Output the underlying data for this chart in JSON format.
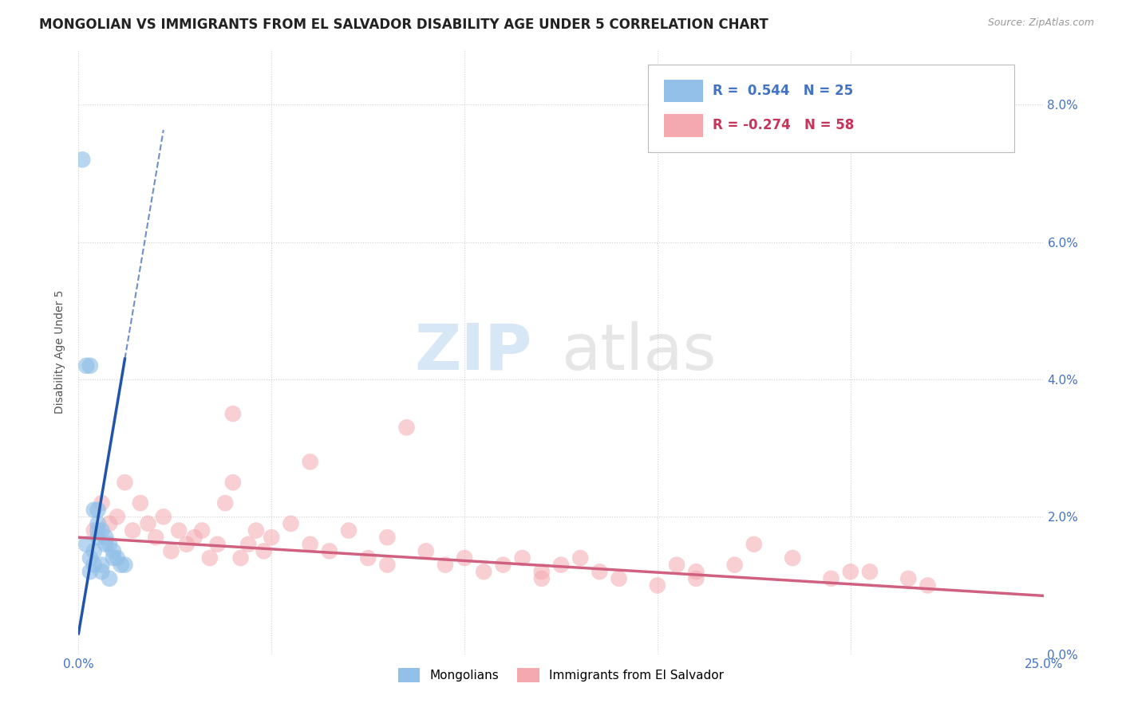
{
  "title": "MONGOLIAN VS IMMIGRANTS FROM EL SALVADOR DISABILITY AGE UNDER 5 CORRELATION CHART",
  "source": "Source: ZipAtlas.com",
  "ylabel": "Disability Age Under 5",
  "xlim": [
    0.0,
    0.25
  ],
  "ylim": [
    0.0,
    0.088
  ],
  "x_ticks": [
    0.0,
    0.05,
    0.1,
    0.15,
    0.2,
    0.25
  ],
  "y_ticks": [
    0.0,
    0.02,
    0.04,
    0.06,
    0.08
  ],
  "y_tick_labels": [
    "0.0%",
    "2.0%",
    "4.0%",
    "6.0%",
    "8.0%"
  ],
  "legend_r1": "R =  0.544",
  "legend_n1": "N = 25",
  "legend_r2": "R = -0.274",
  "legend_n2": "N = 58",
  "color_mongolian": "#92c0e8",
  "color_salvador": "#f4a8b0",
  "color_mongolian_line": "#2255aa",
  "color_salvador_line": "#d06080",
  "background_color": "#ffffff",
  "grid_color": "#cccccc",
  "mongolian_x": [
    0.001,
    0.002,
    0.002,
    0.003,
    0.003,
    0.003,
    0.004,
    0.004,
    0.004,
    0.005,
    0.005,
    0.005,
    0.005,
    0.006,
    0.006,
    0.006,
    0.007,
    0.007,
    0.008,
    0.008,
    0.009,
    0.009,
    0.01,
    0.011,
    0.012
  ],
  "mongolian_y": [
    0.072,
    0.016,
    0.042,
    0.014,
    0.012,
    0.042,
    0.013,
    0.015,
    0.021,
    0.017,
    0.018,
    0.019,
    0.021,
    0.012,
    0.013,
    0.018,
    0.016,
    0.017,
    0.011,
    0.016,
    0.014,
    0.015,
    0.014,
    0.013,
    0.013
  ],
  "salvador_x": [
    0.004,
    0.006,
    0.008,
    0.01,
    0.012,
    0.014,
    0.016,
    0.018,
    0.02,
    0.022,
    0.024,
    0.026,
    0.028,
    0.03,
    0.032,
    0.034,
    0.036,
    0.038,
    0.04,
    0.042,
    0.044,
    0.046,
    0.048,
    0.05,
    0.055,
    0.06,
    0.065,
    0.07,
    0.075,
    0.08,
    0.085,
    0.09,
    0.095,
    0.1,
    0.105,
    0.11,
    0.115,
    0.12,
    0.125,
    0.13,
    0.135,
    0.14,
    0.15,
    0.155,
    0.16,
    0.17,
    0.175,
    0.185,
    0.195,
    0.205,
    0.215,
    0.22,
    0.08,
    0.12,
    0.16,
    0.2,
    0.04,
    0.06
  ],
  "salvador_y": [
    0.018,
    0.022,
    0.019,
    0.02,
    0.025,
    0.018,
    0.022,
    0.019,
    0.017,
    0.02,
    0.015,
    0.018,
    0.016,
    0.017,
    0.018,
    0.014,
    0.016,
    0.022,
    0.025,
    0.014,
    0.016,
    0.018,
    0.015,
    0.017,
    0.019,
    0.016,
    0.015,
    0.018,
    0.014,
    0.013,
    0.033,
    0.015,
    0.013,
    0.014,
    0.012,
    0.013,
    0.014,
    0.011,
    0.013,
    0.014,
    0.012,
    0.011,
    0.01,
    0.013,
    0.012,
    0.013,
    0.016,
    0.014,
    0.011,
    0.012,
    0.011,
    0.01,
    0.017,
    0.012,
    0.011,
    0.012,
    0.035,
    0.028
  ],
  "watermark_zip": "ZIP",
  "watermark_atlas": "atlas",
  "title_fontsize": 12,
  "label_fontsize": 10,
  "tick_fontsize": 11,
  "legend_fontsize": 12
}
